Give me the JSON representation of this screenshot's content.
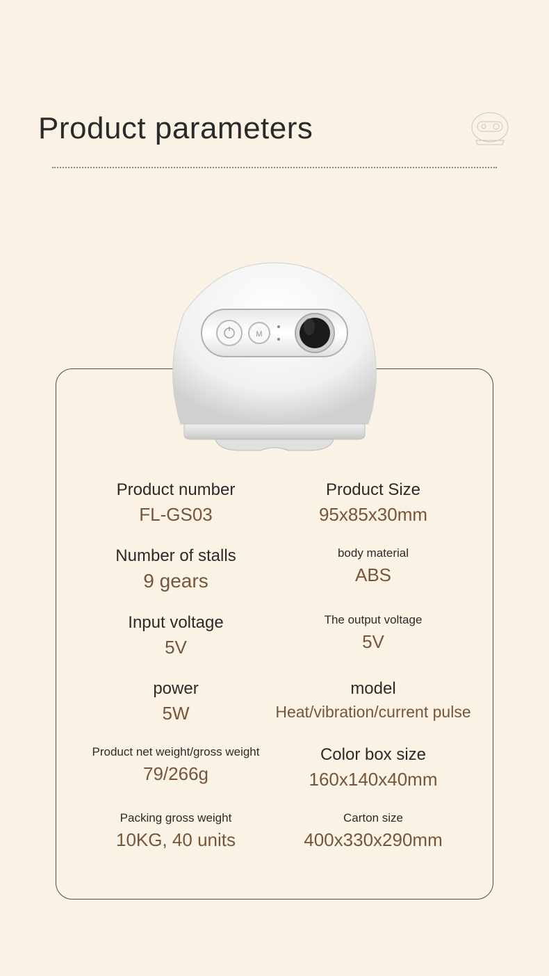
{
  "title": "Product parameters",
  "colors": {
    "background": "#faf3e5",
    "title_text": "#2a2a2a",
    "label_text": "#2a2a2a",
    "value_text": "#76553a",
    "border": "#5a4a3a",
    "dotted": "#8a8273"
  },
  "product_image": {
    "body_gradient_top": "#ffffff",
    "body_gradient_bottom": "#d8d8d8",
    "panel_fill": "#f5f5f5",
    "panel_stroke": "#b8b8b8",
    "button_stroke": "#c0c0c0",
    "screen_outer": "#c8c8c8",
    "screen_inner": "#1a1a1a",
    "base_fill": "#e8e8e8"
  },
  "specs": [
    {
      "label": "Product number",
      "value": "FL-GS03",
      "label_class": "lbl-lg",
      "val_class": "val-lg"
    },
    {
      "label": "Product Size",
      "value": "95x85x30mm",
      "label_class": "lbl-lg",
      "val_class": "val-lg"
    },
    {
      "label": "Number of stalls",
      "value": "9 gears",
      "label_class": "lbl-lg",
      "val_class": "val-xl"
    },
    {
      "label": "body material",
      "value": "ABS",
      "label_class": "lbl-sm",
      "val_class": "val-lg"
    },
    {
      "label": "Input voltage",
      "value": "5V",
      "label_class": "lbl-lg",
      "val_class": "val-lg"
    },
    {
      "label": "The output voltage",
      "value": "5V",
      "label_class": "lbl-sm",
      "val_class": "val-lg"
    },
    {
      "label": "power",
      "value": "5W",
      "label_class": "lbl-lg",
      "val_class": "val-lg"
    },
    {
      "label": "model",
      "value": "Heat/vibration/current pulse",
      "label_class": "lbl-lg",
      "val_class": "val-md"
    },
    {
      "label": "Product net weight/gross weight",
      "value": "79/266g",
      "label_class": "lbl-sm",
      "val_class": "val-lg"
    },
    {
      "label": "Color box size",
      "value": "160x140x40mm",
      "label_class": "lbl-lg",
      "val_class": "val-lg"
    },
    {
      "label": "Packing gross weight",
      "value": "10KG, 40 units",
      "label_class": "lbl-sm",
      "val_class": "val-lg"
    },
    {
      "label": "Carton size",
      "value": "400x330x290mm",
      "label_class": "lbl-sm",
      "val_class": "val-lg"
    }
  ]
}
